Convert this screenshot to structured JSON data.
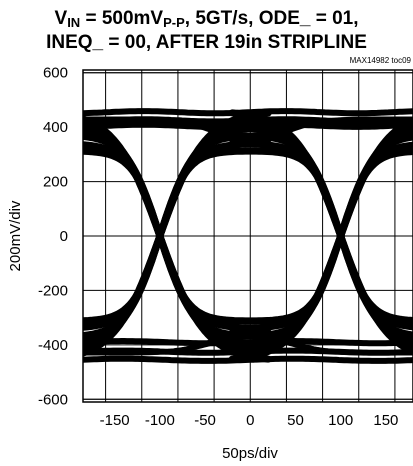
{
  "title": {
    "line1_prefix": "V",
    "line1_sub": "IN",
    "line1_mid": " = 500mV",
    "line1_sub2": "P-P",
    "line1_suffix": ", 5GT/s, ODE_ = 01,",
    "line2": "INEQ_ = 00, AFTER 19in STRIPLINE"
  },
  "figure_code": "MAX14982 toc09",
  "chart_data": {
    "type": "line",
    "chart_kind": "eye-diagram",
    "title": "VIN = 500mVP-P, 5GT/s, ODE_ = 01, INEQ_ = 00, AFTER 19in STRIPLINE",
    "xlabel": "50ps/div",
    "ylabel": "200mV/div",
    "xlim": [
      -185,
      180
    ],
    "ylim": [
      -610,
      610
    ],
    "x_ticks": [
      -150,
      -100,
      -50,
      0,
      50,
      100,
      150
    ],
    "y_ticks": [
      600,
      400,
      200,
      0,
      -200,
      -400,
      -600
    ],
    "x_tick_labels": [
      "-150",
      "-100",
      "-50",
      "0",
      "50",
      "100",
      "150"
    ],
    "y_tick_labels": [
      "600",
      "400",
      "200",
      "0",
      "-200",
      "-400",
      "-600"
    ],
    "grid": true,
    "trace_color": "#000000",
    "unit_interval_ps": 200,
    "crossing_points_ps": [
      -100,
      100
    ],
    "rails_mV": {
      "high": [
        455,
        425,
        405
      ],
      "low": [
        -455,
        -425,
        -390
      ]
    }
  }
}
